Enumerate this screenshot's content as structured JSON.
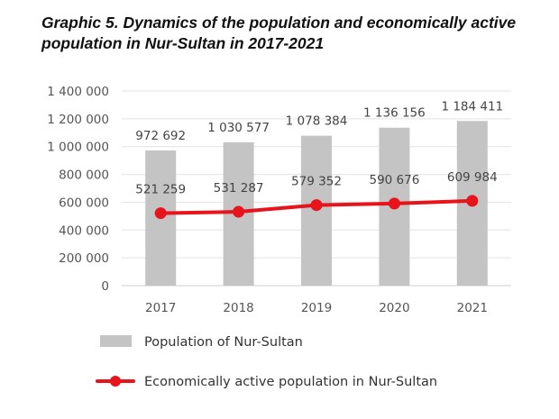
{
  "chart_data": {
    "type": "bar",
    "title": "Graphic 5. Dynamics of the population and economically active population in Nur-Sultan in 2017-2021",
    "categories": [
      "2017",
      "2018",
      "2019",
      "2020",
      "2021"
    ],
    "series": [
      {
        "name": "Population of Nur-Sultan",
        "type": "bar",
        "color": "#c4c4c4",
        "values": [
          972692,
          1030577,
          1078384,
          1136156,
          1184411
        ],
        "labels": [
          "972 692",
          "1 030 577",
          "1 078 384",
          "1 136 156",
          "1 184 411"
        ]
      },
      {
        "name": "Economically active population in Nur-Sultan",
        "type": "line",
        "color": "#e8141b",
        "values": [
          521259,
          531287,
          579352,
          590676,
          609984
        ],
        "labels": [
          "521 259",
          "531 287",
          "579 352",
          "590 676",
          "609 984"
        ]
      }
    ],
    "ylim": [
      0,
      1400000
    ],
    "yticks": [
      0,
      200000,
      400000,
      600000,
      800000,
      1000000,
      1200000,
      1400000
    ],
    "ytick_labels": [
      "0",
      "200 000",
      "400 000",
      "600 000",
      "800 000",
      "1 000 000",
      "1 200 000",
      "1 400 000"
    ],
    "grid": true,
    "legend_position": "bottom"
  }
}
